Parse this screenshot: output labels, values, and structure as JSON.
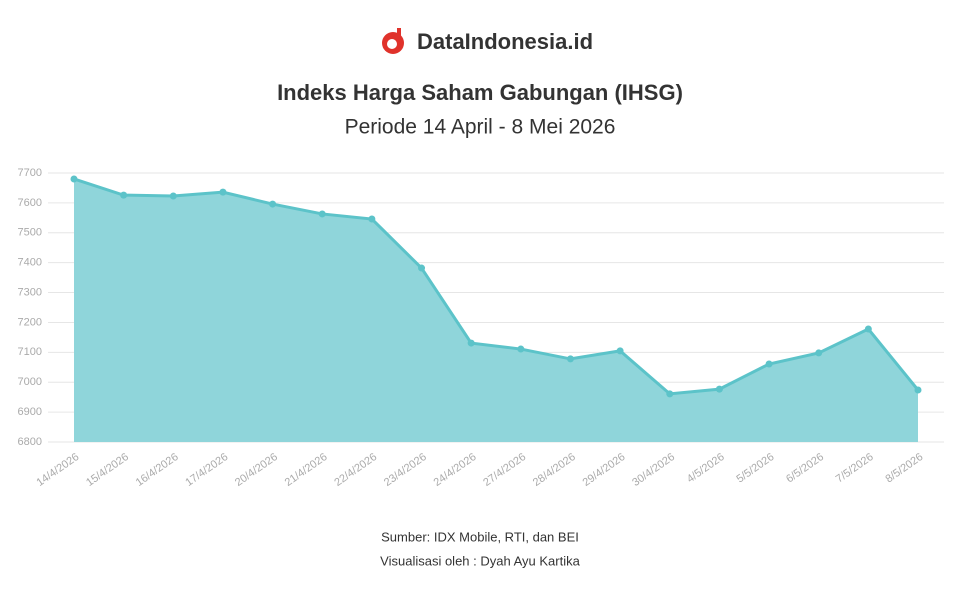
{
  "brand": "DataIndonesia.id",
  "chart_data": {
    "type": "area",
    "title": "Indeks Harga Saham Gabungan (IHSG)",
    "subtitle": "Periode 14 April - 8 Mei 2026",
    "categories": [
      "14/4/2026",
      "15/4/2026",
      "16/4/2026",
      "17/4/2026",
      "20/4/2026",
      "21/4/2026",
      "22/4/2026",
      "23/4/2026",
      "24/4/2026",
      "27/4/2026",
      "28/4/2026",
      "29/4/2026",
      "30/4/2026",
      "4/5/2026",
      "5/5/2026",
      "6/5/2026",
      "7/5/2026",
      "8/5/2026"
    ],
    "values": [
      7680,
      7626,
      7623,
      7636,
      7596,
      7563,
      7546,
      7382,
      7131,
      7111,
      7078,
      7105,
      6961,
      6977,
      7061,
      7098,
      7178,
      6974
    ],
    "color": "#5cc3c9",
    "fill": "#8fd5da",
    "ylim": [
      6800,
      7700
    ],
    "yticks": [
      6800,
      6900,
      7000,
      7100,
      7200,
      7300,
      7400,
      7500,
      7600,
      7700
    ],
    "grid": true,
    "notes": [
      "Sumber: IDX Mobile, RTI, dan BEI",
      "Visualisasi oleh : Dyah Ayu Kartika"
    ]
  }
}
